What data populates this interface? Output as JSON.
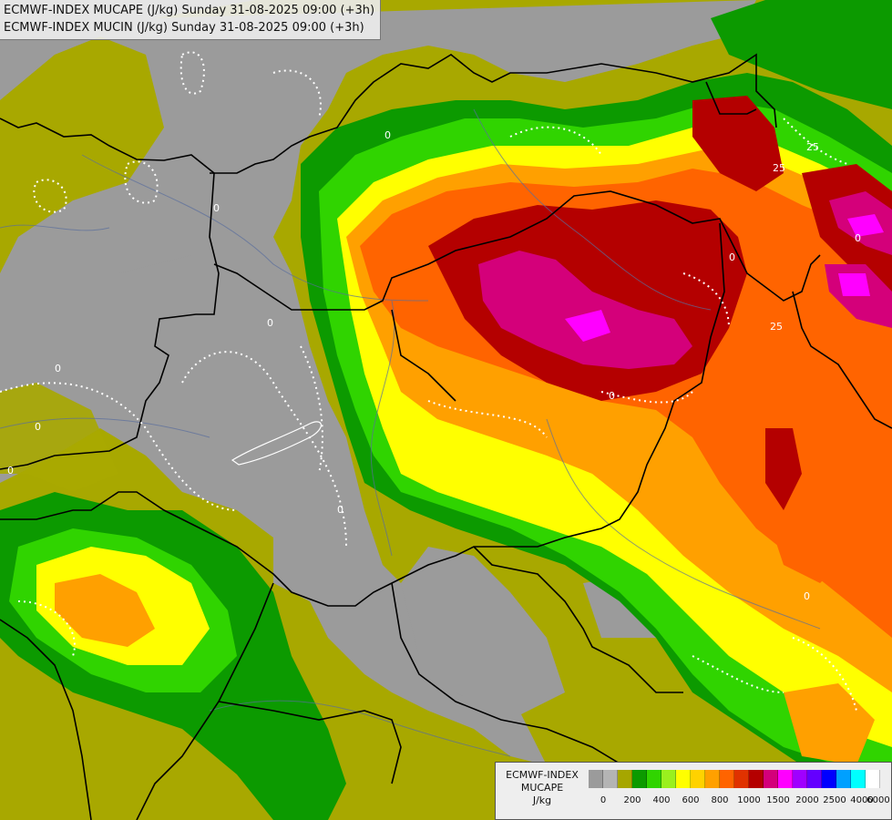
{
  "map": {
    "title_line_1": "ECMWF-INDEX MUCAPE (J/kg) Sunday 31-08-2025 09:00 (+3h)",
    "title_line_2": "ECMWF-INDEX MUCIN (J/kg) Sunday 31-08-2025 09:00 (+3h)",
    "contour_labels": [
      "0",
      "0",
      "0",
      "0",
      "0",
      "0",
      "0",
      "0",
      "0",
      "25",
      "25",
      "25",
      "0",
      "0"
    ]
  },
  "legend": {
    "title_line_1": "ECMWF-INDEX",
    "title_line_2": "MUCAPE",
    "unit": "J/kg",
    "tick_labels": [
      "0",
      "200",
      "400",
      "600",
      "800",
      "1000",
      "1500",
      "2000",
      "2500",
      "4000",
      "6000"
    ],
    "colors": [
      "#9b9b9b",
      "#b4b4b4",
      "#a6a600",
      "#0c9a00",
      "#30d400",
      "#9af01e",
      "#ffff00",
      "#ffd200",
      "#ffa000",
      "#ff6400",
      "#e03200",
      "#b40000",
      "#d4007a",
      "#ff00ff",
      "#a000ff",
      "#6400ff",
      "#0000ff",
      "#00a0ff",
      "#00ffff",
      "#ffffff"
    ]
  }
}
